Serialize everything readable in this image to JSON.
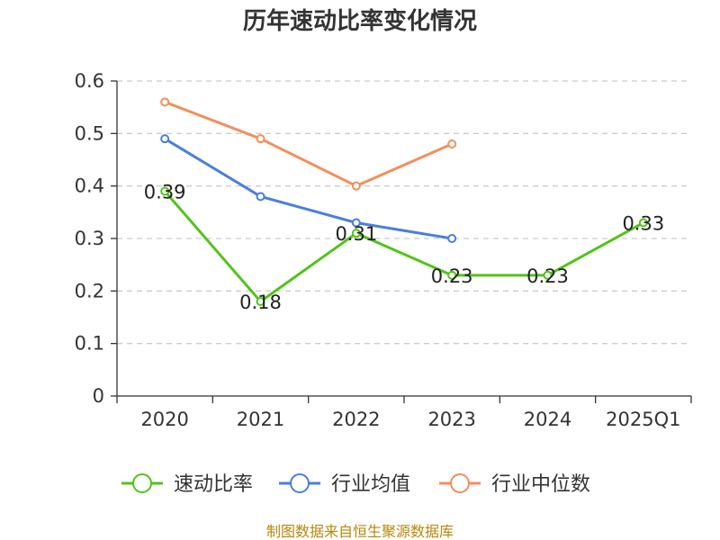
{
  "chart_data": {
    "type": "line",
    "title": "历年速动比率变化情况",
    "categories": [
      "2020",
      "2021",
      "2022",
      "2023",
      "2024",
      "2025Q1"
    ],
    "ylim": [
      0,
      0.6
    ],
    "yticks": [
      "0",
      "0.1",
      "0.2",
      "0.3",
      "0.4",
      "0.5",
      "0.6"
    ],
    "grid": true,
    "legend_position": "bottom",
    "series": [
      {
        "name": "速动比率",
        "color": "#52c41a",
        "values": [
          0.39,
          0.18,
          0.31,
          0.23,
          0.23,
          0.33
        ],
        "labels": [
          "0.39",
          "0.18",
          "0.31",
          "0.23",
          "0.23",
          "0.33"
        ]
      },
      {
        "name": "行业均值",
        "color": "#4a7fdc",
        "values": [
          0.49,
          0.38,
          0.33,
          0.3,
          null,
          null
        ]
      },
      {
        "name": "行业中位数",
        "color": "#f58e5b",
        "values": [
          0.56,
          0.49,
          0.4,
          0.48,
          null,
          null
        ]
      }
    ]
  },
  "source_text": "制图数据来自恒生聚源数据库"
}
